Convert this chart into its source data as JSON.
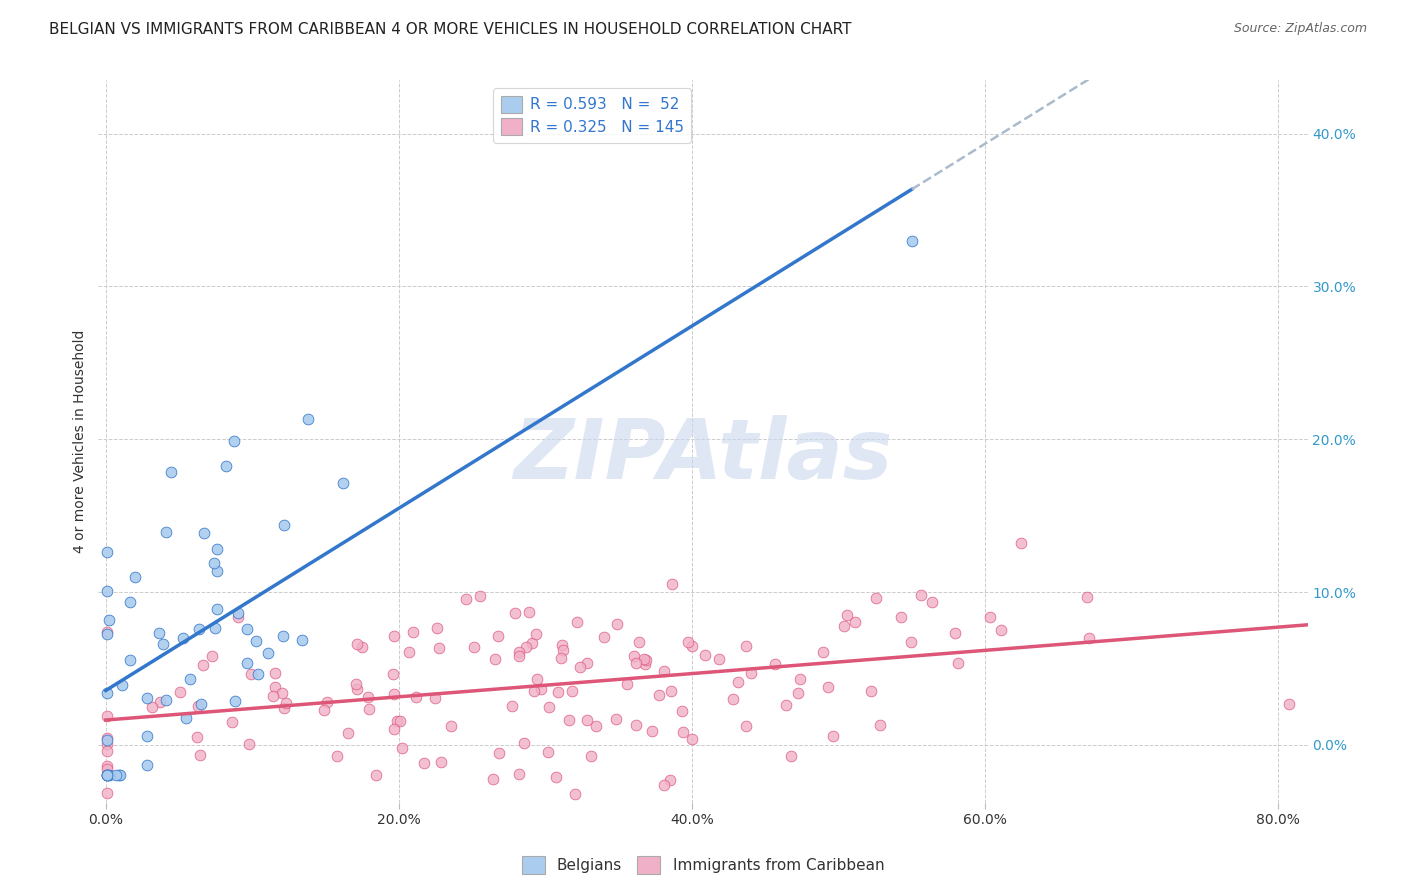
{
  "title": "BELGIAN VS IMMIGRANTS FROM CARIBBEAN 4 OR MORE VEHICLES IN HOUSEHOLD CORRELATION CHART",
  "source": "Source: ZipAtlas.com",
  "ylabel": "4 or more Vehicles in Household",
  "xlabel_ticks": [
    "0.0%",
    "20.0%",
    "40.0%",
    "60.0%",
    "80.0%"
  ],
  "xlabel_vals": [
    0.0,
    0.2,
    0.4,
    0.6,
    0.8
  ],
  "ylabel_ticks": [
    "0.0%",
    "10.0%",
    "20.0%",
    "30.0%",
    "40.0%"
  ],
  "ylabel_vals": [
    0.0,
    0.1,
    0.2,
    0.3,
    0.4
  ],
  "xlim": [
    -0.005,
    0.82
  ],
  "ylim": [
    -0.038,
    0.435
  ],
  "belgian_R": 0.593,
  "belgian_N": 52,
  "carib_R": 0.325,
  "carib_N": 145,
  "belgian_color": "#aaccee",
  "carib_color": "#f0b0c8",
  "belgian_line_color": "#3377cc",
  "carib_line_color": "#dd5577",
  "dashed_line_color": "#aabbcc",
  "watermark_color": "#ccd8ee",
  "background_color": "#ffffff",
  "grid_color": "#cccccc",
  "title_fontsize": 11,
  "axis_label_fontsize": 10,
  "tick_fontsize": 10,
  "legend_fontsize": 11,
  "scatter_size": 60
}
